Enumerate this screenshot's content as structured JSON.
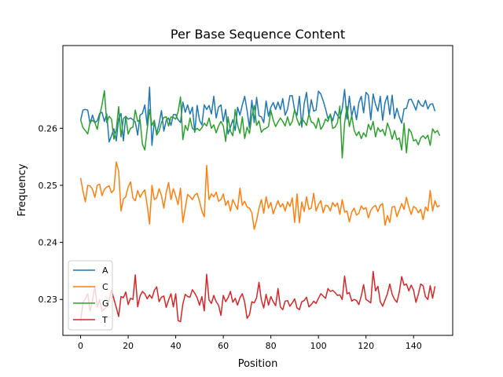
{
  "chart_data": {
    "type": "line",
    "title": "Per Base Sequence Content",
    "xlabel": "Position",
    "ylabel": "Frequency",
    "xlim": [
      -7.45,
      156.45
    ],
    "ylim": [
      0.2237,
      0.2745
    ],
    "xticks": [
      0,
      20,
      40,
      60,
      80,
      100,
      120,
      140
    ],
    "yticks": [
      0.23,
      0.24,
      0.25,
      0.26
    ],
    "ytick_labels": [
      "0.23",
      "0.24",
      "0.25",
      "0.26"
    ],
    "legend_position": "lower-left",
    "grid": false,
    "series": [
      {
        "name": "A",
        "color": "#1f77b4",
        "values": [
          0.2614,
          0.2632,
          0.2633,
          0.2632,
          0.2608,
          0.2623,
          0.261,
          0.2613,
          0.2626,
          0.2628,
          0.2612,
          0.2625,
          0.2576,
          0.2587,
          0.2599,
          0.2578,
          0.2617,
          0.2626,
          0.2578,
          0.2621,
          0.2616,
          0.2618,
          0.2615,
          0.2611,
          0.2588,
          0.2623,
          0.2626,
          0.2641,
          0.2605,
          0.2672,
          0.257,
          0.2612,
          0.2591,
          0.2608,
          0.2631,
          0.2595,
          0.2614,
          0.2618,
          0.2605,
          0.2624,
          0.2624,
          0.2615,
          0.261,
          0.2646,
          0.2628,
          0.2641,
          0.2625,
          0.2637,
          0.2593,
          0.264,
          0.2614,
          0.2606,
          0.2641,
          0.2633,
          0.264,
          0.2625,
          0.2656,
          0.2618,
          0.2637,
          0.2641,
          0.2612,
          0.2633,
          0.259,
          0.2602,
          0.2615,
          0.2596,
          0.2637,
          0.2623,
          0.2641,
          0.2656,
          0.2631,
          0.2601,
          0.2649,
          0.261,
          0.2654,
          0.2622,
          0.262,
          0.261,
          0.2648,
          0.2621,
          0.2637,
          0.2645,
          0.2633,
          0.2646,
          0.2633,
          0.2652,
          0.2623,
          0.2633,
          0.2657,
          0.2657,
          0.2631,
          0.2623,
          0.2656,
          0.2602,
          0.2643,
          0.2663,
          0.2622,
          0.265,
          0.263,
          0.2632,
          0.2665,
          0.266,
          0.2648,
          0.2634,
          0.2617,
          0.2624,
          0.2613,
          0.263,
          0.2623,
          0.2617,
          0.2634,
          0.2668,
          0.2616,
          0.2656,
          0.2621,
          0.2639,
          0.2615,
          0.2645,
          0.2656,
          0.2627,
          0.2663,
          0.2658,
          0.2615,
          0.266,
          0.2642,
          0.263,
          0.2656,
          0.2614,
          0.2645,
          0.2657,
          0.2624,
          0.2658,
          0.2617,
          0.2635,
          0.262,
          0.2609,
          0.2634,
          0.2635,
          0.265,
          0.2651,
          0.2642,
          0.2632,
          0.2649,
          0.2641,
          0.2638,
          0.2649,
          0.2634,
          0.2642,
          0.2643,
          0.263
        ]
      },
      {
        "name": "C",
        "color": "#ff7f0e",
        "values": [
          0.2513,
          0.249,
          0.2471,
          0.25,
          0.2499,
          0.2493,
          0.2479,
          0.25,
          0.2502,
          0.2482,
          0.2493,
          0.2497,
          0.2499,
          0.2487,
          0.2492,
          0.2541,
          0.2525,
          0.2455,
          0.2476,
          0.248,
          0.2497,
          0.2506,
          0.2478,
          0.2473,
          0.2491,
          0.2479,
          0.2487,
          0.2492,
          0.2465,
          0.2432,
          0.25,
          0.2475,
          0.2478,
          0.2494,
          0.2482,
          0.246,
          0.2488,
          0.2505,
          0.2475,
          0.2494,
          0.2481,
          0.2466,
          0.2495,
          0.2435,
          0.246,
          0.2484,
          0.248,
          0.2475,
          0.2483,
          0.2486,
          0.2472,
          0.2455,
          0.2445,
          0.2535,
          0.2475,
          0.2485,
          0.248,
          0.2488,
          0.2472,
          0.2475,
          0.2485,
          0.2465,
          0.2473,
          0.2455,
          0.2475,
          0.2466,
          0.2458,
          0.2495,
          0.2465,
          0.2472,
          0.2462,
          0.246,
          0.2452,
          0.2423,
          0.2438,
          0.246,
          0.2475,
          0.2451,
          0.248,
          0.246,
          0.247,
          0.245,
          0.2462,
          0.2473,
          0.2462,
          0.2468,
          0.2455,
          0.2471,
          0.2463,
          0.2478,
          0.2435,
          0.2485,
          0.2434,
          0.2471,
          0.2454,
          0.248,
          0.2458,
          0.246,
          0.2486,
          0.2455,
          0.2466,
          0.2473,
          0.2452,
          0.2465,
          0.2464,
          0.2455,
          0.247,
          0.2463,
          0.2469,
          0.2449,
          0.2475,
          0.2453,
          0.2455,
          0.2436,
          0.2453,
          0.246,
          0.2448,
          0.2451,
          0.2464,
          0.2458,
          0.2461,
          0.2443,
          0.2456,
          0.2462,
          0.2465,
          0.2454,
          0.2465,
          0.2468,
          0.243,
          0.2447,
          0.2435,
          0.2462,
          0.2463,
          0.2445,
          0.2456,
          0.2468,
          0.2458,
          0.2479,
          0.2462,
          0.2449,
          0.2463,
          0.246,
          0.2452,
          0.2458,
          0.244,
          0.2462,
          0.2455,
          0.2491,
          0.2455,
          0.2473,
          0.2462,
          0.2465
        ]
      },
      {
        "name": "G",
        "color": "#2ca02c",
        "values": [
          0.2615,
          0.2601,
          0.2596,
          0.259,
          0.2611,
          0.2614,
          0.261,
          0.2598,
          0.2622,
          0.2641,
          0.2666,
          0.261,
          0.2621,
          0.2616,
          0.2581,
          0.2597,
          0.2638,
          0.2585,
          0.2617,
          0.2621,
          0.259,
          0.26,
          0.2602,
          0.2632,
          0.2612,
          0.2615,
          0.2572,
          0.2562,
          0.2598,
          0.2633,
          0.2605,
          0.2614,
          0.2588,
          0.2595,
          0.261,
          0.2619,
          0.262,
          0.2604,
          0.262,
          0.2619,
          0.2616,
          0.2629,
          0.2655,
          0.258,
          0.2605,
          0.2596,
          0.2618,
          0.26,
          0.2596,
          0.26,
          0.2596,
          0.2601,
          0.2609,
          0.2604,
          0.2618,
          0.26,
          0.2606,
          0.2592,
          0.2604,
          0.2612,
          0.2604,
          0.2577,
          0.262,
          0.2595,
          0.2587,
          0.2633,
          0.2606,
          0.2591,
          0.262,
          0.2582,
          0.2602,
          0.2591,
          0.2621,
          0.264,
          0.2605,
          0.2613,
          0.2593,
          0.2598,
          0.26,
          0.2603,
          0.2631,
          0.2614,
          0.2603,
          0.2611,
          0.2618,
          0.2612,
          0.2604,
          0.262,
          0.2605,
          0.2612,
          0.2633,
          0.2616,
          0.2605,
          0.2617,
          0.2612,
          0.2605,
          0.2625,
          0.2611,
          0.2609,
          0.26,
          0.2618,
          0.2598,
          0.2605,
          0.2616,
          0.2612,
          0.2625,
          0.26,
          0.2602,
          0.261,
          0.2639,
          0.2548,
          0.2609,
          0.2638,
          0.2603,
          0.2622,
          0.2597,
          0.2587,
          0.2594,
          0.2582,
          0.2592,
          0.2585,
          0.2607,
          0.2597,
          0.2612,
          0.2585,
          0.2601,
          0.2594,
          0.2598,
          0.2587,
          0.2609,
          0.2598,
          0.2581,
          0.2596,
          0.258,
          0.2583,
          0.2562,
          0.2609,
          0.2557,
          0.2599,
          0.2593,
          0.2578,
          0.258,
          0.2571,
          0.2583,
          0.2587,
          0.2582,
          0.2588,
          0.257,
          0.2599,
          0.2592,
          0.2596,
          0.2587
        ]
      },
      {
        "name": "T",
        "color": "#d62728",
        "values": [
          0.2261,
          0.2295,
          0.2301,
          0.231,
          0.228,
          0.2298,
          0.2323,
          0.2287,
          0.23,
          0.2279,
          0.2283,
          0.2287,
          0.2299,
          0.2316,
          0.2301,
          0.2286,
          0.227,
          0.2305,
          0.2303,
          0.2313,
          0.2291,
          0.2302,
          0.23,
          0.2343,
          0.2287,
          0.2306,
          0.2314,
          0.231,
          0.2301,
          0.2308,
          0.2302,
          0.2316,
          0.2322,
          0.2296,
          0.2304,
          0.2306,
          0.2286,
          0.2299,
          0.231,
          0.2287,
          0.231,
          0.2263,
          0.2261,
          0.2292,
          0.2309,
          0.2305,
          0.2304,
          0.2317,
          0.2311,
          0.2303,
          0.229,
          0.2305,
          0.228,
          0.2344,
          0.2299,
          0.2293,
          0.2307,
          0.2296,
          0.229,
          0.2272,
          0.2307,
          0.2296,
          0.2303,
          0.2314,
          0.2295,
          0.2302,
          0.229,
          0.2303,
          0.231,
          0.2295,
          0.2267,
          0.2273,
          0.2296,
          0.2294,
          0.2303,
          0.233,
          0.2299,
          0.2285,
          0.2309,
          0.229,
          0.2305,
          0.2296,
          0.2289,
          0.2319,
          0.2287,
          0.2282,
          0.2297,
          0.2298,
          0.2288,
          0.2294,
          0.2301,
          0.2285,
          0.2282,
          0.2296,
          0.2298,
          0.2304,
          0.2287,
          0.2291,
          0.2297,
          0.2293,
          0.2302,
          0.231,
          0.2306,
          0.2302,
          0.2319,
          0.2314,
          0.2316,
          0.2312,
          0.2307,
          0.2308,
          0.23,
          0.2341,
          0.231,
          0.2312,
          0.2297,
          0.23,
          0.2298,
          0.2291,
          0.2306,
          0.2326,
          0.23,
          0.2297,
          0.2294,
          0.2349,
          0.2315,
          0.2323,
          0.2296,
          0.2288,
          0.2299,
          0.231,
          0.2327,
          0.2309,
          0.23,
          0.2295,
          0.2313,
          0.234,
          0.2325,
          0.2327,
          0.2315,
          0.2325,
          0.2316,
          0.2295,
          0.2309,
          0.2327,
          0.2324,
          0.2305,
          0.23,
          0.2324,
          0.2302,
          0.2323
        ]
      }
    ]
  }
}
